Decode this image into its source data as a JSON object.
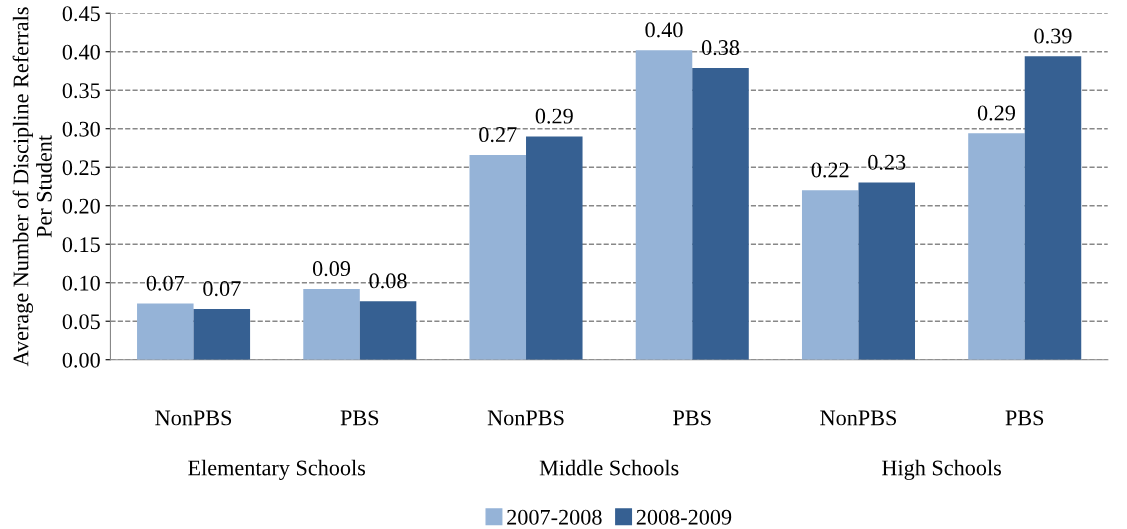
{
  "chart_data": {
    "type": "bar",
    "ylabel": "Average Number of Discipline Referrals Per Student",
    "categories": [
      "NonPBS",
      "PBS",
      "NonPBS",
      "PBS",
      "NonPBS",
      "PBS"
    ],
    "annotations": [
      "Elementary Schools",
      "Middle Schools",
      "High Schools"
    ],
    "series": [
      {
        "name": "2007-2008",
        "color": "#95b3d7",
        "values": [
          0.073,
          0.092,
          0.266,
          0.402,
          0.22,
          0.294
        ],
        "value_labels": [
          "0.07",
          "0.09",
          "0.27",
          "0.40",
          "0.22",
          "0.29"
        ]
      },
      {
        "name": "2008-2009",
        "color": "#366092",
        "values": [
          0.066,
          0.076,
          0.29,
          0.379,
          0.23,
          0.394
        ],
        "value_labels": [
          "0.07",
          "0.08",
          "0.29",
          "0.38",
          "0.23",
          "0.39"
        ]
      }
    ],
    "ylim": [
      0,
      0.45
    ],
    "yticks": [
      {
        "value": 0,
        "label": "0.00"
      },
      {
        "value": 0.05,
        "label": "0.05"
      },
      {
        "value": 0.1,
        "label": "0.10"
      },
      {
        "value": 0.15,
        "label": "0.15"
      },
      {
        "value": 0.2,
        "label": "0.20"
      },
      {
        "value": 0.25,
        "label": "0.25"
      },
      {
        "value": 0.3,
        "label": "0.30"
      },
      {
        "value": 0.35,
        "label": "0.35"
      },
      {
        "value": 0.4,
        "label": "0.40"
      },
      {
        "value": 0.45,
        "label": "0.45"
      }
    ],
    "grid": "y",
    "legend": "bottom"
  }
}
